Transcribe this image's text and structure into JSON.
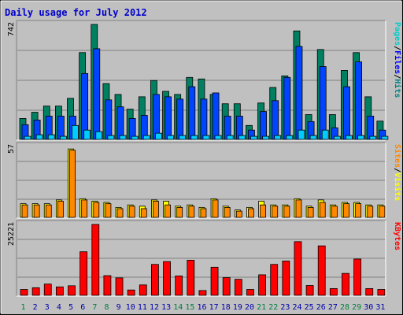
{
  "title": "Daily usage for July 2012",
  "days": [
    "1",
    "2",
    "3",
    "4",
    "5",
    "6",
    "7",
    "8",
    "9",
    "10",
    "11",
    "12",
    "13",
    "14",
    "15",
    "16",
    "17",
    "18",
    "19",
    "20",
    "21",
    "22",
    "23",
    "24",
    "25",
    "26",
    "27",
    "28",
    "29",
    "30",
    "31"
  ],
  "weekend_days": [
    "1",
    "7",
    "8",
    "14",
    "15",
    "21",
    "22",
    "28",
    "29"
  ],
  "panels": {
    "top": {
      "max_label": "742",
      "legend": [
        {
          "text": "Pages",
          "color": "#00cccc"
        },
        {
          "text": "/",
          "color": "#000000"
        },
        {
          "text": "Files",
          "color": "#0000ff"
        },
        {
          "text": "/",
          "color": "#000000"
        },
        {
          "text": "Hits",
          "color": "#008080"
        }
      ]
    },
    "middle": {
      "max_label": "57",
      "legend": [
        {
          "text": "Sites",
          "color": "#ff8800"
        },
        {
          "text": "/",
          "color": "#000000"
        },
        {
          "text": "Visits",
          "color": "#ffff00"
        }
      ]
    },
    "bottom": {
      "max_label": "25221",
      "legend": [
        {
          "text": "KBytes",
          "color": "#ff0000"
        }
      ]
    }
  },
  "colors": {
    "hits": "#008060",
    "files": "#0044ff",
    "pages": "#00ccff",
    "visits": "#ffff00",
    "sites": "#ff8800",
    "kbytes": "#ff0000",
    "title": "#0000cc",
    "weekend": "#008040",
    "weekday": "#0000aa"
  },
  "chart_data": [
    {
      "type": "bar",
      "categories": [
        "1",
        "2",
        "3",
        "4",
        "5",
        "6",
        "7",
        "8",
        "9",
        "10",
        "11",
        "12",
        "13",
        "14",
        "15",
        "16",
        "17",
        "18",
        "19",
        "20",
        "21",
        "22",
        "23",
        "24",
        "25",
        "26",
        "27",
        "28",
        "29",
        "30",
        "31"
      ],
      "ylim": [
        0,
        742
      ],
      "series": [
        {
          "name": "Hits",
          "values": [
            135,
            175,
            215,
            215,
            265,
            560,
            742,
            360,
            290,
            195,
            275,
            380,
            310,
            290,
            400,
            390,
            290,
            230,
            230,
            90,
            235,
            335,
            410,
            700,
            160,
            580,
            160,
            445,
            560,
            275,
            118
          ]
        },
        {
          "name": "Files",
          "values": [
            95,
            125,
            150,
            150,
            150,
            425,
            585,
            255,
            210,
            135,
            155,
            290,
            275,
            260,
            340,
            260,
            300,
            150,
            150,
            60,
            180,
            250,
            400,
            600,
            115,
            470,
            75,
            340,
            500,
            150,
            60
          ]
        },
        {
          "name": "Pages",
          "values": [
            20,
            30,
            30,
            20,
            90,
            60,
            50,
            25,
            25,
            20,
            25,
            40,
            25,
            25,
            25,
            25,
            25,
            25,
            25,
            20,
            20,
            25,
            25,
            60,
            25,
            60,
            20,
            25,
            25,
            20,
            20
          ]
        }
      ]
    },
    {
      "type": "bar",
      "categories": [
        "1",
        "2",
        "3",
        "4",
        "5",
        "6",
        "7",
        "8",
        "9",
        "10",
        "11",
        "12",
        "13",
        "14",
        "15",
        "16",
        "17",
        "18",
        "19",
        "20",
        "21",
        "22",
        "23",
        "24",
        "25",
        "26",
        "27",
        "28",
        "29",
        "30",
        "31"
      ],
      "ylim": [
        0,
        57
      ],
      "series": [
        {
          "name": "Visits",
          "values": [
            11,
            11,
            11,
            14,
            55,
            15,
            13,
            12,
            8,
            10,
            9,
            14,
            13,
            9,
            10,
            8,
            15,
            9,
            6,
            8,
            13,
            10,
            10,
            15,
            9,
            14,
            10,
            12,
            12,
            10,
            10
          ]
        },
        {
          "name": "Sites",
          "values": [
            10,
            10,
            10,
            13,
            54,
            14,
            12,
            11,
            7,
            9,
            7,
            13,
            10,
            8,
            9,
            7,
            14,
            8,
            5,
            7,
            10,
            9,
            9,
            14,
            8,
            12,
            9,
            11,
            11,
            9,
            9
          ]
        }
      ]
    },
    {
      "type": "bar",
      "categories": [
        "1",
        "2",
        "3",
        "4",
        "5",
        "6",
        "7",
        "8",
        "9",
        "10",
        "11",
        "12",
        "13",
        "14",
        "15",
        "16",
        "17",
        "18",
        "19",
        "20",
        "21",
        "22",
        "23",
        "24",
        "25",
        "26",
        "27",
        "28",
        "29",
        "30",
        "31"
      ],
      "ylim": [
        0,
        25221
      ],
      "series": [
        {
          "name": "KBytes",
          "values": [
            2100,
            2700,
            4000,
            3000,
            3400,
            15500,
            25221,
            7000,
            6200,
            1900,
            3700,
            11000,
            12000,
            6900,
            12500,
            1700,
            10000,
            6300,
            5700,
            2100,
            7300,
            11000,
            12200,
            19100,
            3500,
            17600,
            2400,
            7800,
            12900,
            2400,
            2100
          ]
        }
      ]
    }
  ]
}
